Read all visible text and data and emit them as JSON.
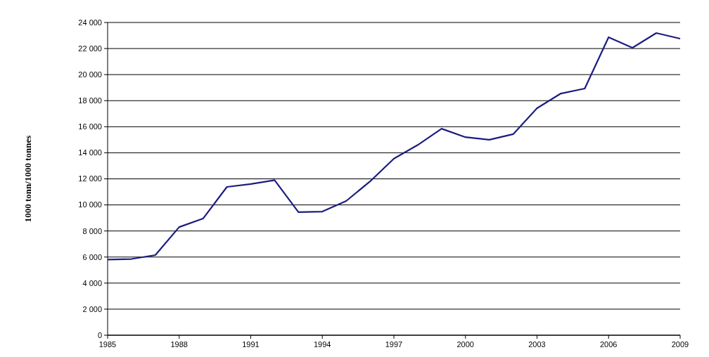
{
  "chart_data": {
    "type": "line",
    "ylabel": "1000 tonn/1000 tonnes",
    "x": [
      1985,
      1986,
      1987,
      1988,
      1989,
      1990,
      1991,
      1992,
      1993,
      1994,
      1995,
      1996,
      1997,
      1998,
      1999,
      2000,
      2001,
      2002,
      2003,
      2004,
      2005,
      2006,
      2007,
      2008,
      2009
    ],
    "series": [
      {
        "color": "#1c1c80",
        "values": [
          5800,
          5850,
          6150,
          8300,
          8950,
          11380,
          11600,
          11900,
          9440,
          9490,
          10300,
          11800,
          13550,
          14600,
          15850,
          15200,
          15000,
          15430,
          17420,
          18550,
          18930,
          22870,
          22060,
          23190,
          22760
        ]
      }
    ],
    "xlim": [
      1985,
      2009
    ],
    "xticks": [
      1985,
      1988,
      1991,
      1994,
      1997,
      2000,
      2003,
      2006,
      2009
    ],
    "ylim": [
      0,
      24000
    ],
    "yticks": [
      0,
      {
        "value": 2000,
        "label": "2 000"
      },
      {
        "value": 4000,
        "label": "4 000"
      },
      {
        "value": 6000,
        "label": "6 000"
      },
      {
        "value": 8000,
        "label": "8 000"
      },
      {
        "value": 10000,
        "label": "10 000"
      },
      {
        "value": 12000,
        "label": "12 000"
      },
      {
        "value": 14000,
        "label": "14 000"
      },
      {
        "value": 16000,
        "label": "16 000"
      },
      {
        "value": 18000,
        "label": "18 000"
      },
      {
        "value": 20000,
        "label": "20 000"
      },
      {
        "value": 22000,
        "label": "22 000"
      },
      {
        "value": 24000,
        "label": "24 000"
      }
    ],
    "grid": "y",
    "marker": "none",
    "line_style": "solid"
  }
}
